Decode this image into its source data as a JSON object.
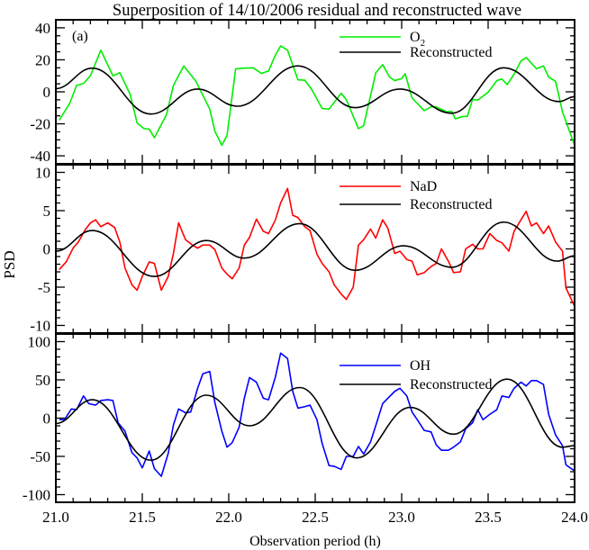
{
  "title": "Superposition of 14/10/2006 residual and reconstructed wave",
  "xlabel": "Observation period (h)",
  "ylabel": "PSD",
  "panel_tag": "(a)",
  "colors": {
    "O2": "#00ee00",
    "NaD": "#ff0000",
    "OH": "#0000ff",
    "reconstructed": "#000000"
  },
  "chart_data": [
    {
      "type": "line",
      "xlim": [
        21.0,
        24.0
      ],
      "ylim": [
        -45,
        45
      ],
      "yticks": [
        40,
        20,
        0,
        -20,
        -40
      ],
      "yminor": 5,
      "legend": "top-right",
      "series": [
        {
          "name": "O",
          "subscript": "2",
          "key": "O2",
          "x": [
            21.02,
            21.08,
            21.12,
            21.16,
            21.2,
            21.26,
            21.33,
            21.37,
            21.43,
            21.47,
            21.51,
            21.54,
            21.57,
            21.64,
            21.68,
            21.74,
            21.81,
            21.89,
            21.92,
            21.96,
            21.99,
            22.04,
            22.09,
            22.14,
            22.19,
            22.23,
            22.27,
            22.3,
            22.34,
            22.4,
            22.44,
            22.48,
            22.54,
            22.58,
            22.65,
            22.68,
            22.75,
            22.78,
            22.85,
            22.89,
            22.93,
            22.96,
            23.0,
            23.02,
            23.06,
            23.13,
            23.17,
            23.2,
            23.26,
            23.29,
            23.31,
            23.35,
            23.38,
            23.41,
            23.44,
            23.5,
            23.55,
            23.58,
            23.61,
            23.65,
            23.69,
            23.72,
            23.78,
            23.82,
            23.85,
            23.89,
            23.93,
            24.0
          ],
          "y": [
            -17.7,
            -7.3,
            4,
            5.2,
            10,
            26,
            10,
            12,
            -1.7,
            -19.5,
            -23,
            -23.3,
            -28.7,
            -14.3,
            4,
            16.2,
            6.6,
            -10.8,
            -24.7,
            -33.4,
            -27.3,
            14.4,
            14.8,
            15,
            11.5,
            13,
            23,
            28.7,
            26,
            7.5,
            7.3,
            1.4,
            -10.4,
            -10.8,
            -0.9,
            -4.9,
            -23,
            -21.2,
            11.8,
            17,
            9.2,
            7,
            8.3,
            11.3,
            -3.8,
            -11.8,
            -9.4,
            -9.4,
            -12.5,
            -12.2,
            -16.9,
            -15.5,
            -15.3,
            -4.7,
            -5.2,
            -0.3,
            7,
            8,
            4.5,
            11,
            19.3,
            21.4,
            14.4,
            16.2,
            9.2,
            6.6,
            -12.5,
            -33.4
          ]
        },
        {
          "name": "Reconstructed",
          "key": "reconstructed",
          "x": [
            21.0,
            21.21,
            21.55,
            21.82,
            22.05,
            22.4,
            22.73,
            22.99,
            23.29,
            23.59,
            23.91,
            24.0
          ],
          "y": [
            2,
            14.8,
            -13.9,
            1.7,
            -9,
            16.2,
            -9.9,
            1.7,
            -13.4,
            15,
            -6.1,
            -3
          ]
        }
      ]
    },
    {
      "type": "line",
      "xlim": [
        21.0,
        24.0
      ],
      "ylim": [
        -11,
        11
      ],
      "yticks": [
        10,
        5,
        0,
        -5,
        -10
      ],
      "yminor": 1,
      "legend": "top-right",
      "series": [
        {
          "name": "NaD",
          "key": "NaD",
          "x": [
            21.02,
            21.06,
            21.1,
            21.13,
            21.17,
            21.2,
            21.23,
            21.26,
            21.3,
            21.34,
            21.37,
            21.4,
            21.44,
            21.47,
            21.5,
            21.54,
            21.57,
            21.61,
            21.65,
            21.68,
            21.71,
            21.75,
            21.79,
            21.82,
            21.85,
            21.89,
            21.92,
            21.96,
            21.99,
            22.02,
            22.06,
            22.09,
            22.12,
            22.16,
            22.2,
            22.23,
            22.27,
            22.3,
            22.34,
            22.37,
            22.4,
            22.44,
            22.47,
            22.51,
            22.54,
            22.58,
            22.61,
            22.65,
            22.68,
            22.72,
            22.75,
            22.78,
            22.82,
            22.85,
            22.89,
            22.92,
            22.96,
            22.99,
            23.03,
            23.06,
            23.09,
            23.13,
            23.17,
            23.2,
            23.23,
            23.27,
            23.3,
            23.34,
            23.37,
            23.41,
            23.44,
            23.47,
            23.51,
            23.55,
            23.58,
            23.62,
            23.65,
            23.69,
            23.72,
            23.75,
            23.78,
            23.82,
            23.85,
            23.89,
            23.93,
            23.95,
            24.0
          ],
          "y": [
            -2.7,
            -1.7,
            0.1,
            0.9,
            2.5,
            3.4,
            3.8,
            2.9,
            3.4,
            2.8,
            0.9,
            -2.5,
            -4.7,
            -5.4,
            -3.6,
            -1.7,
            -1.9,
            -5.4,
            -3.6,
            -0.6,
            3.4,
            1.2,
            0.5,
            0.1,
            0.5,
            0.5,
            -0.1,
            -2.5,
            -3.3,
            -3.9,
            -2.5,
            0.5,
            1.5,
            3.9,
            2.3,
            2,
            3.8,
            6,
            7.9,
            4.4,
            4.1,
            2.9,
            2.4,
            -0.7,
            -1.9,
            -3,
            -4.7,
            -5.9,
            -6.6,
            -5,
            0.5,
            1.2,
            2.6,
            1.4,
            3.8,
            2.7,
            -0.6,
            -0.3,
            -1.4,
            -1.6,
            -3.4,
            -3.1,
            -2.3,
            -1.9,
            0,
            -1.6,
            -3.1,
            -3,
            0,
            0.6,
            0,
            0,
            2,
            1.1,
            0.8,
            -0.3,
            2.3,
            3.8,
            4.9,
            3,
            3.4,
            2,
            3,
            0.9,
            -0.3,
            -5.1,
            -7.5
          ]
        },
        {
          "name": "Reconstructed",
          "key": "reconstructed",
          "x": [
            21.0,
            21.21,
            21.57,
            21.87,
            22.09,
            22.41,
            22.73,
            23.01,
            23.29,
            23.59,
            23.9,
            24.0
          ],
          "y": [
            -0.3,
            2.4,
            -3.6,
            1.1,
            -1.2,
            3.3,
            -2.8,
            0.4,
            -2.4,
            3.5,
            -1.6,
            -0.9
          ]
        }
      ]
    },
    {
      "type": "line",
      "xlim": [
        21.0,
        24.0
      ],
      "ylim": [
        -110,
        110
      ],
      "yticks": [
        100,
        50,
        0,
        -50,
        -100
      ],
      "yminor": 10,
      "xticks": [
        "21.0",
        "21.5",
        "22.0",
        "22.5",
        "23.0",
        "23.5",
        "24.0"
      ],
      "legend": "top-right",
      "series": [
        {
          "name": "OH",
          "key": "OH",
          "x": [
            21.02,
            21.05,
            21.09,
            21.12,
            21.16,
            21.19,
            21.23,
            21.26,
            21.3,
            21.33,
            21.36,
            21.4,
            21.44,
            21.47,
            21.5,
            21.54,
            21.57,
            21.61,
            21.65,
            21.68,
            21.71,
            21.75,
            21.78,
            21.82,
            21.85,
            21.89,
            21.92,
            21.96,
            21.99,
            22.02,
            22.06,
            22.09,
            22.12,
            22.16,
            22.2,
            22.23,
            22.27,
            22.3,
            22.34,
            22.37,
            22.4,
            22.44,
            22.47,
            22.51,
            22.54,
            22.58,
            22.61,
            22.65,
            22.68,
            22.72,
            22.75,
            22.78,
            22.82,
            22.85,
            22.89,
            22.92,
            22.96,
            22.99,
            23.03,
            23.06,
            23.09,
            23.13,
            23.17,
            23.2,
            23.23,
            23.27,
            23.3,
            23.34,
            23.37,
            23.41,
            23.44,
            23.47,
            23.51,
            23.55,
            23.58,
            23.62,
            23.65,
            23.69,
            23.72,
            23.75,
            23.78,
            23.82,
            23.85,
            23.89,
            23.93,
            23.95,
            24.0
          ],
          "y": [
            -2,
            -2,
            12,
            11,
            29,
            19,
            17,
            23,
            24,
            23,
            -6,
            -17,
            -45,
            -52,
            -65,
            -43,
            -66,
            -76,
            -46,
            -9,
            12,
            7,
            8,
            39,
            58,
            61,
            20,
            -17,
            -38,
            -32,
            -12,
            26,
            53,
            47,
            26,
            24,
            54,
            85,
            78,
            35,
            13,
            15,
            17,
            -2,
            -33,
            -62,
            -63,
            -67,
            -50,
            -50,
            -37,
            -47,
            -31,
            -10,
            19,
            26,
            35,
            39,
            29,
            8,
            -2,
            -16,
            -18,
            -35,
            -42,
            -42,
            -38,
            -31,
            -14,
            -6,
            11,
            -2,
            5,
            11,
            29,
            27,
            39,
            47,
            42,
            49,
            49,
            44,
            5,
            -22,
            -36,
            -61,
            -69
          ]
        },
        {
          "name": "Reconstructed",
          "key": "reconstructed",
          "x": [
            21.0,
            21.21,
            21.55,
            21.87,
            22.12,
            22.41,
            22.74,
            23.05,
            23.3,
            23.61,
            23.93,
            24.0
          ],
          "y": [
            -7,
            24,
            -55,
            30,
            -10,
            40,
            -52,
            14,
            -21,
            51,
            -38,
            -36
          ]
        }
      ]
    }
  ]
}
